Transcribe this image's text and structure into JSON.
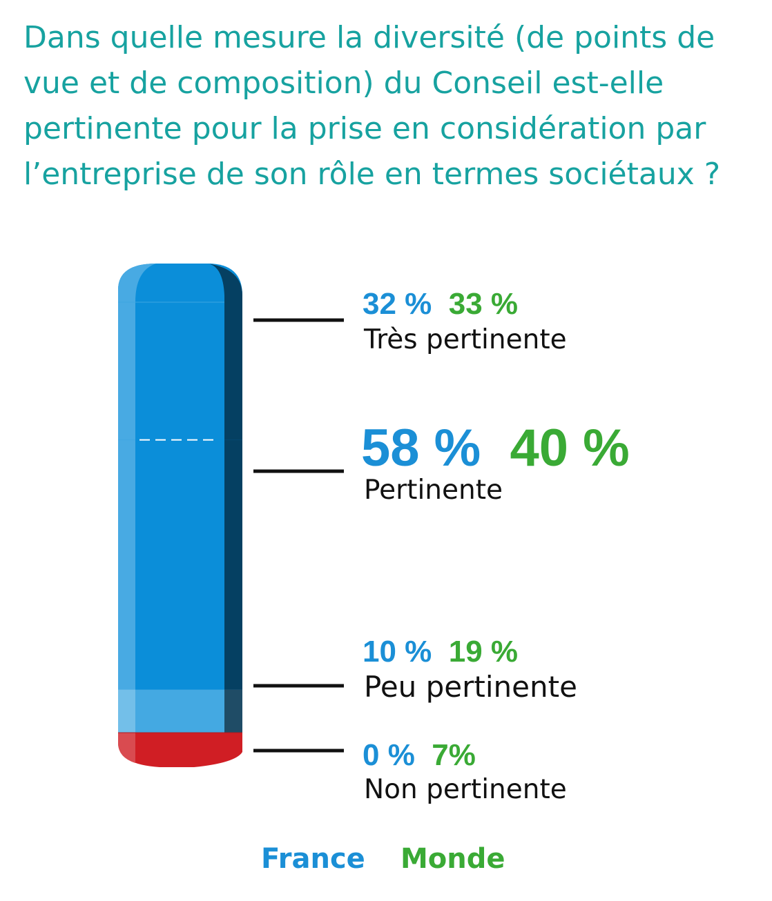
{
  "title_lines": [
    "Dans quelle mesure la diversité (de points de",
    "vue et de composition) du Conseil est-elle",
    "pertinente pour la prise en considération par",
    "l’entreprise de son rôle en termes sociétaux ?"
  ],
  "chart_data": {
    "type": "bar",
    "orientation": "stacked-single-column",
    "title": "Dans quelle mesure la diversité (de points de vue et de composition) du Conseil est-elle pertinente pour la prise en considération par l’entreprise de son rôle en termes sociétaux ?",
    "drawn_series": "France",
    "categories": [
      "Très pertinente",
      "Pertinente",
      "Peu pertinente",
      "Non pertinente"
    ],
    "series": [
      {
        "name": "France",
        "values": [
          32,
          58,
          10,
          0
        ],
        "labels": [
          "32 %",
          "58 %",
          "10 %",
          "0 %"
        ],
        "color": "#1b8fd6"
      },
      {
        "name": "Monde",
        "values": [
          33,
          40,
          19,
          7
        ],
        "labels": [
          "33 %",
          "40 %",
          "19 %",
          "7%"
        ],
        "color": "#3aaa35"
      }
    ],
    "segment_colors": [
      "#0b8ed9",
      "#0b8ed9",
      "#44a9e2",
      "#d01e24"
    ],
    "ylim": [
      0,
      100
    ]
  },
  "legend": {
    "france": "France",
    "monde": "Monde"
  },
  "colors": {
    "title": "#17a2a0",
    "france": "#1b8fd6",
    "monde": "#3aaa35",
    "tick": "#111111"
  }
}
